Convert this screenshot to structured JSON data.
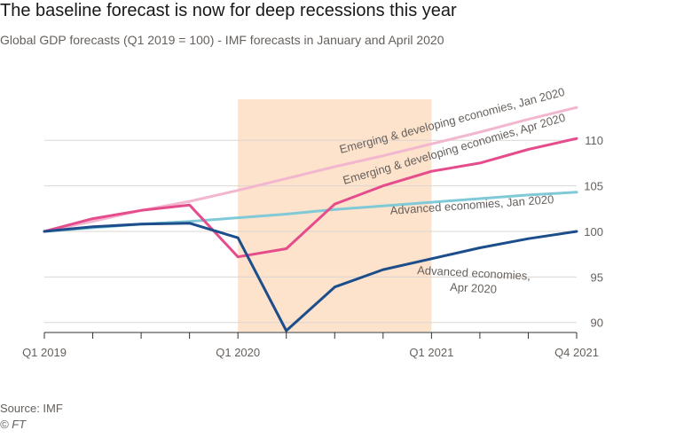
{
  "title": "The baseline forecast is now for deep recessions this year",
  "subtitle": "Global GDP forecasts (Q1 2019 = 100) - IMF forecasts in January and April 2020",
  "source": "Source: IMF",
  "credit": "© FT",
  "chart_data": {
    "type": "line",
    "title": "The baseline forecast is now for deep recessions this year",
    "subtitle": "Global GDP forecasts (Q1 2019 = 100) - IMF forecasts in January and April 2020",
    "x": [
      "Q1 2019",
      "Q2 2019",
      "Q3 2019",
      "Q4 2019",
      "Q1 2020",
      "Q2 2020",
      "Q3 2020",
      "Q4 2020",
      "Q1 2021",
      "Q2 2021",
      "Q3 2021",
      "Q4 2021"
    ],
    "x_tick_labels": [
      {
        "index": 0,
        "label": "Q1 2019"
      },
      {
        "index": 4,
        "label": "Q1 2020"
      },
      {
        "index": 8,
        "label": "Q1 2021"
      },
      {
        "index": 11,
        "label": "Q4 2021"
      }
    ],
    "ylim": [
      89,
      114.5
    ],
    "yticks": [
      90,
      95,
      100,
      105,
      110
    ],
    "y_axis_side": "right",
    "grid": true,
    "highlight_band": {
      "from_index": 4,
      "to_index": 8,
      "color": "#fde2cc"
    },
    "series": [
      {
        "name": "Emerging & developing economies, Jan 2020",
        "color": "#f2b6cf",
        "values": [
          100,
          101.1,
          102.3,
          103.3,
          104.5,
          105.8,
          107.1,
          108.3,
          109.6,
          110.9,
          112.3,
          113.6
        ]
      },
      {
        "name": "Advanced economies, Jan 2020",
        "color": "#7fcad6",
        "values": [
          100,
          100.4,
          100.8,
          101.1,
          101.5,
          101.9,
          102.4,
          102.8,
          103.2,
          103.6,
          104,
          104.3
        ]
      },
      {
        "name": "Emerging & developing economies, Apr 2020",
        "color": "#e54c8c",
        "values": [
          100,
          101.4,
          102.3,
          102.9,
          97.2,
          98.1,
          103,
          105,
          106.6,
          107.5,
          109,
          110.2
        ]
      },
      {
        "name": "Advanced economies, Apr 2020",
        "color": "#1c4e8c",
        "values": [
          100,
          100.5,
          100.8,
          100.9,
          99.3,
          89.1,
          93.9,
          95.8,
          97,
          98.2,
          99.2,
          100
        ]
      }
    ],
    "annotations": [
      {
        "text": "Emerging & developing economies, Jan 2020",
        "series": 0
      },
      {
        "text": "Emerging & developing economies, Apr 2020",
        "series": 2
      },
      {
        "text": "Advanced economies, Jan 2020",
        "series": 1
      },
      {
        "text": "Advanced economies,",
        "series": 3
      },
      {
        "text": "Apr 2020",
        "series": 3
      }
    ]
  }
}
